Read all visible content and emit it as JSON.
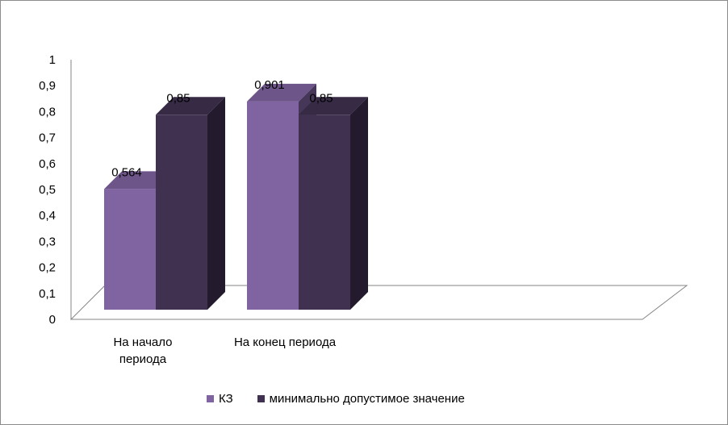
{
  "chart_data": {
    "type": "bar",
    "subtype": "3d-clustered-column",
    "categories": [
      "На начало периода",
      "На конец периода"
    ],
    "category_lines": [
      [
        "На начало",
        "периода"
      ],
      [
        "На конец периода"
      ]
    ],
    "series": [
      {
        "name": "КЗ",
        "values": [
          0.564,
          0.901
        ],
        "labels": [
          "0,564",
          "0,901"
        ],
        "color": "#8064a2"
      },
      {
        "name": "минимально допустимое значение",
        "values": [
          0.85,
          0.85
        ],
        "labels": [
          "0,85",
          "0,85"
        ],
        "color": "#403151"
      }
    ],
    "ylim": [
      0,
      1
    ],
    "yticks": [
      {
        "value": 0,
        "label": "0"
      },
      {
        "value": 0.1,
        "label": "0,1"
      },
      {
        "value": 0.2,
        "label": "0,2"
      },
      {
        "value": 0.3,
        "label": "0,3"
      },
      {
        "value": 0.4,
        "label": "0,4"
      },
      {
        "value": 0.5,
        "label": "0,5"
      },
      {
        "value": 0.6,
        "label": "0,6"
      },
      {
        "value": 0.7,
        "label": "0,7"
      },
      {
        "value": 0.8,
        "label": "0,8"
      },
      {
        "value": 0.9,
        "label": "0,9"
      },
      {
        "value": 1,
        "label": "1"
      }
    ],
    "grid": false,
    "legend_position": "bottom"
  }
}
